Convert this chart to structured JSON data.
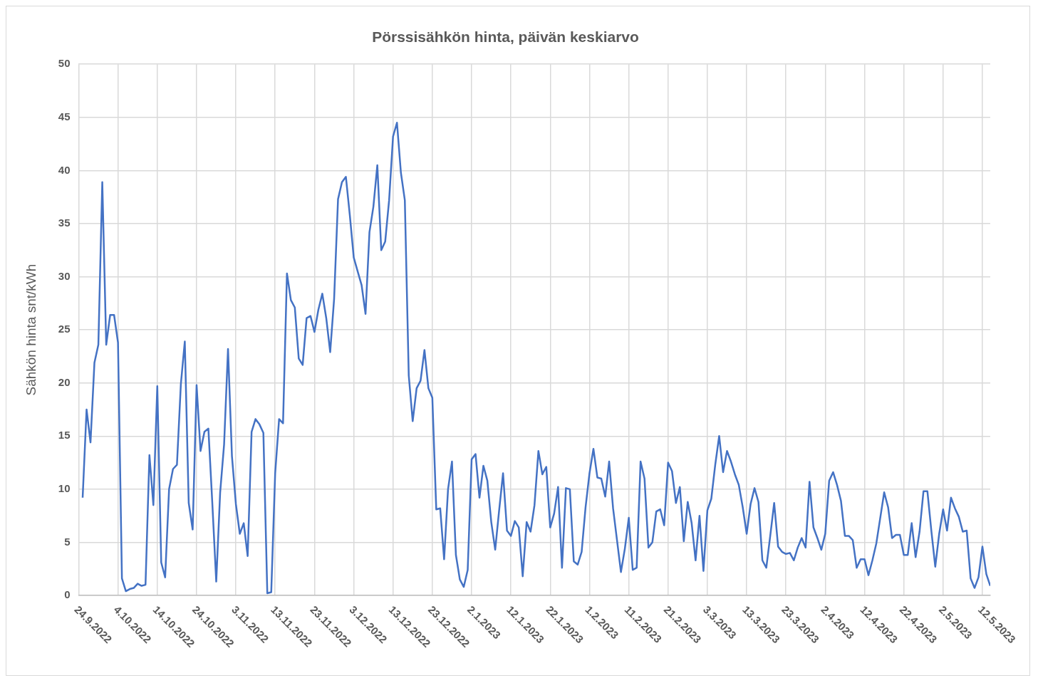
{
  "chart_data": {
    "type": "line",
    "title": "Pörssisähkön hinta, päivän keskiarvo",
    "ylabel": "Sähkön hinta snt/kWh",
    "x": [
      "2022-09-25",
      "2022-09-26",
      "2022-09-27",
      "2022-09-28",
      "2022-09-29",
      "2022-09-30",
      "2022-10-01",
      "2022-10-02",
      "2022-10-03",
      "2022-10-04",
      "2022-10-05",
      "2022-10-06",
      "2022-10-07",
      "2022-10-08",
      "2022-10-09",
      "2022-10-10",
      "2022-10-11",
      "2022-10-12",
      "2022-10-13",
      "2022-10-14",
      "2022-10-15",
      "2022-10-16",
      "2022-10-17",
      "2022-10-18",
      "2022-10-19",
      "2022-10-20",
      "2022-10-21",
      "2022-10-22",
      "2022-10-23",
      "2022-10-24",
      "2022-10-25",
      "2022-10-26",
      "2022-10-27",
      "2022-10-28",
      "2022-10-29",
      "2022-10-30",
      "2022-10-31",
      "2022-11-01",
      "2022-11-02",
      "2022-11-03",
      "2022-11-04",
      "2022-11-05",
      "2022-11-06",
      "2022-11-07",
      "2022-11-08",
      "2022-11-09",
      "2022-11-10",
      "2022-11-11",
      "2022-11-12",
      "2022-11-13",
      "2022-11-14",
      "2022-11-15",
      "2022-11-16",
      "2022-11-17",
      "2022-11-18",
      "2022-11-19",
      "2022-11-20",
      "2022-11-21",
      "2022-11-22",
      "2022-11-23",
      "2022-11-24",
      "2022-11-25",
      "2022-11-26",
      "2022-11-27",
      "2022-11-28",
      "2022-11-29",
      "2022-11-30",
      "2022-12-01",
      "2022-12-02",
      "2022-12-03",
      "2022-12-04",
      "2022-12-05",
      "2022-12-06",
      "2022-12-07",
      "2022-12-08",
      "2022-12-09",
      "2022-12-10",
      "2022-12-11",
      "2022-12-12",
      "2022-12-13",
      "2022-12-14",
      "2022-12-15",
      "2022-12-16",
      "2022-12-17",
      "2022-12-18",
      "2022-12-19",
      "2022-12-20",
      "2022-12-21",
      "2022-12-22",
      "2022-12-23",
      "2022-12-24",
      "2022-12-25",
      "2022-12-26",
      "2022-12-27",
      "2022-12-28",
      "2022-12-29",
      "2022-12-30",
      "2022-12-31",
      "2023-01-01",
      "2023-01-02",
      "2023-01-03",
      "2023-01-04",
      "2023-01-05",
      "2023-01-06",
      "2023-01-07",
      "2023-01-08",
      "2023-01-09",
      "2023-01-10",
      "2023-01-11",
      "2023-01-12",
      "2023-01-13",
      "2023-01-14",
      "2023-01-15",
      "2023-01-16",
      "2023-01-17",
      "2023-01-18",
      "2023-01-19",
      "2023-01-20",
      "2023-01-21",
      "2023-01-22",
      "2023-01-23",
      "2023-01-24",
      "2023-01-25",
      "2023-01-26",
      "2023-01-27",
      "2023-01-28",
      "2023-01-29",
      "2023-01-30",
      "2023-01-31",
      "2023-02-01",
      "2023-02-02",
      "2023-02-03",
      "2023-02-04",
      "2023-02-05",
      "2023-02-06",
      "2023-02-07",
      "2023-02-08",
      "2023-02-09",
      "2023-02-10",
      "2023-02-11",
      "2023-02-12",
      "2023-02-13",
      "2023-02-14",
      "2023-02-15",
      "2023-02-16",
      "2023-02-17",
      "2023-02-18",
      "2023-02-19",
      "2023-02-20",
      "2023-02-21",
      "2023-02-22",
      "2023-02-23",
      "2023-02-24",
      "2023-02-25",
      "2023-02-26",
      "2023-02-27",
      "2023-02-28",
      "2023-03-01",
      "2023-03-02",
      "2023-03-03",
      "2023-03-04",
      "2023-03-05",
      "2023-03-06",
      "2023-03-07",
      "2023-03-08",
      "2023-03-09",
      "2023-03-10",
      "2023-03-11",
      "2023-03-12",
      "2023-03-13",
      "2023-03-14",
      "2023-03-15",
      "2023-03-16",
      "2023-03-17",
      "2023-03-18",
      "2023-03-19",
      "2023-03-20",
      "2023-03-21",
      "2023-03-22",
      "2023-03-23",
      "2023-03-24",
      "2023-03-25",
      "2023-03-26",
      "2023-03-27",
      "2023-03-28",
      "2023-03-29",
      "2023-03-30",
      "2023-03-31",
      "2023-04-01",
      "2023-04-02",
      "2023-04-03",
      "2023-04-04",
      "2023-04-05",
      "2023-04-06",
      "2023-04-07",
      "2023-04-08",
      "2023-04-09",
      "2023-04-10",
      "2023-04-11",
      "2023-04-12",
      "2023-04-13",
      "2023-04-14",
      "2023-04-15",
      "2023-04-16",
      "2023-04-17",
      "2023-04-18",
      "2023-04-19",
      "2023-04-20",
      "2023-04-21",
      "2023-04-22",
      "2023-04-23",
      "2023-04-24",
      "2023-04-25",
      "2023-04-26",
      "2023-04-27",
      "2023-04-28",
      "2023-04-29",
      "2023-04-30",
      "2023-05-01",
      "2023-05-02",
      "2023-05-03",
      "2023-05-04",
      "2023-05-05",
      "2023-05-06",
      "2023-05-07",
      "2023-05-08",
      "2023-05-09",
      "2023-05-10",
      "2023-05-11",
      "2023-05-12",
      "2023-05-13",
      "2023-05-14"
    ],
    "series": [
      {
        "color": "#4472c4",
        "values": [
          9.2,
          17.5,
          14.4,
          21.9,
          23.6,
          38.9,
          23.6,
          26.4,
          26.4,
          23.8,
          1.6,
          0.4,
          0.6,
          0.7,
          1.1,
          0.9,
          1.0,
          13.2,
          8.5,
          19.7,
          3.1,
          1.7,
          10.0,
          11.9,
          12.3,
          19.9,
          23.9,
          8.7,
          6.2,
          19.8,
          13.6,
          15.4,
          15.7,
          8.7,
          1.3,
          9.7,
          14.2,
          23.2,
          13.1,
          8.6,
          5.8,
          6.8,
          3.7,
          15.4,
          16.6,
          16.1,
          15.3,
          0.2,
          0.3,
          11.5,
          16.6,
          16.2,
          30.3,
          27.8,
          27.1,
          22.3,
          21.7,
          26.1,
          26.3,
          24.8,
          26.9,
          28.4,
          26.1,
          22.9,
          27.9,
          37.3,
          38.9,
          39.4,
          35.8,
          31.8,
          30.5,
          29.2,
          26.5,
          34.2,
          36.6,
          40.5,
          32.5,
          33.3,
          37.2,
          43.2,
          44.5,
          39.8,
          37.2,
          20.7,
          16.4,
          19.5,
          20.2,
          23.1,
          19.5,
          18.6,
          8.1,
          8.2,
          3.4,
          10.0,
          12.6,
          3.8,
          1.5,
          0.8,
          2.4,
          12.8,
          13.3,
          9.2,
          12.2,
          10.8,
          6.9,
          4.3,
          8.0,
          11.5,
          6.1,
          5.6,
          7.0,
          6.4,
          1.8,
          6.9,
          6.0,
          8.5,
          13.6,
          11.4,
          12.1,
          6.4,
          7.7,
          10.2,
          2.6,
          10.1,
          10.0,
          3.2,
          2.9,
          4.1,
          8.3,
          11.5,
          13.8,
          11.1,
          11.0,
          9.3,
          12.6,
          8.2,
          5.2,
          2.2,
          4.4,
          7.3,
          2.4,
          2.6,
          12.6,
          11.0,
          4.5,
          5.0,
          7.9,
          8.1,
          6.6,
          12.5,
          11.7,
          8.7,
          10.2,
          5.1,
          8.8,
          6.8,
          3.3,
          7.5,
          2.3,
          8.0,
          9.1,
          12.3,
          15.0,
          11.6,
          13.6,
          12.6,
          11.4,
          10.4,
          8.3,
          5.8,
          8.6,
          10.1,
          8.8,
          3.3,
          2.6,
          5.6,
          8.7,
          4.6,
          4.1,
          3.9,
          4.0,
          3.3,
          4.5,
          5.4,
          4.5,
          10.7,
          6.4,
          5.4,
          4.3,
          5.8,
          10.8,
          11.6,
          10.4,
          8.9,
          5.6,
          5.6,
          5.2,
          2.6,
          3.4,
          3.4,
          1.9,
          3.3,
          4.9,
          7.3,
          9.7,
          8.3,
          5.4,
          5.7,
          5.7,
          3.8,
          3.8,
          6.8,
          3.6,
          6.0,
          9.8,
          9.8,
          6.1,
          2.7,
          5.8,
          8.1,
          6.1,
          9.2,
          8.2,
          7.4,
          6.0,
          6.1,
          1.6,
          0.7,
          1.7,
          4.6,
          2.0,
          0.9
        ]
      }
    ],
    "xlim": [
      "2022-09-24",
      "2023-05-14"
    ],
    "xticks": [
      {
        "value": "2022-09-24",
        "label": "24.9.2022"
      },
      {
        "value": "2022-10-04",
        "label": "4.10.2022"
      },
      {
        "value": "2022-10-14",
        "label": "14.10.2022"
      },
      {
        "value": "2022-10-24",
        "label": "24.10.2022"
      },
      {
        "value": "2022-11-03",
        "label": "3.11.2022"
      },
      {
        "value": "2022-11-13",
        "label": "13.11.2022"
      },
      {
        "value": "2022-11-23",
        "label": "23.11.2022"
      },
      {
        "value": "2022-12-03",
        "label": "3.12.2022"
      },
      {
        "value": "2022-12-13",
        "label": "13.12.2022"
      },
      {
        "value": "2022-12-23",
        "label": "23.12.2022"
      },
      {
        "value": "2023-01-02",
        "label": "2.1.2023"
      },
      {
        "value": "2023-01-12",
        "label": "12.1.2023"
      },
      {
        "value": "2023-01-22",
        "label": "22.1.2023"
      },
      {
        "value": "2023-02-01",
        "label": "1.2.2023"
      },
      {
        "value": "2023-02-11",
        "label": "11.2.2023"
      },
      {
        "value": "2023-02-21",
        "label": "21.2.2023"
      },
      {
        "value": "2023-03-03",
        "label": "3.3.2023"
      },
      {
        "value": "2023-03-13",
        "label": "13.3.2023"
      },
      {
        "value": "2023-03-23",
        "label": "23.3.2023"
      },
      {
        "value": "2023-04-02",
        "label": "2.4.2023"
      },
      {
        "value": "2023-04-12",
        "label": "12.4.2023"
      },
      {
        "value": "2023-04-22",
        "label": "22.4.2023"
      },
      {
        "value": "2023-05-02",
        "label": "2.5.2023"
      },
      {
        "value": "2023-05-12",
        "label": "12.5.2023"
      }
    ],
    "ylim": [
      0,
      50
    ],
    "yticks": [
      0,
      5,
      10,
      15,
      20,
      25,
      30,
      35,
      40,
      45,
      50
    ],
    "grid": true
  }
}
